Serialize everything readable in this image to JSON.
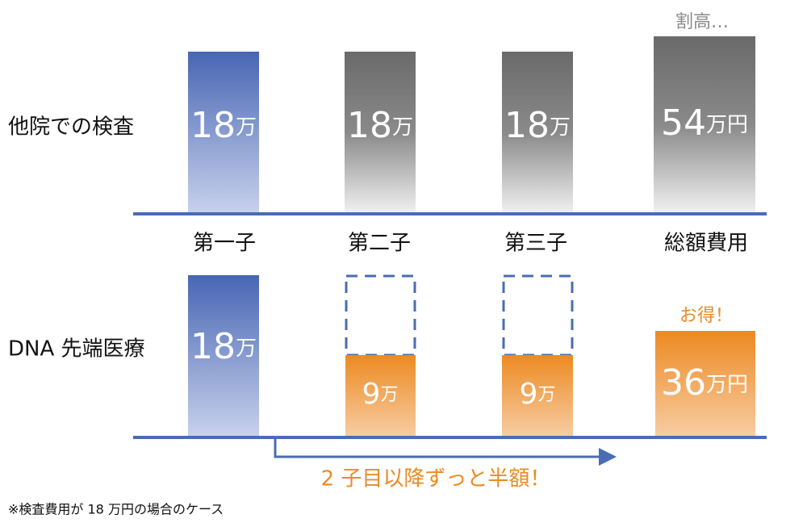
{
  "row_labels": [
    "他院での検査",
    "DNA 先端医療"
  ],
  "columns": [
    "第一子",
    "第二子",
    "第三子",
    "総額費用"
  ],
  "top_row": [
    {
      "amount": "18",
      "unit": "万"
    },
    {
      "amount": "18",
      "unit": "万"
    },
    {
      "amount": "18",
      "unit": "万"
    },
    {
      "amount": "54",
      "unit": "万円"
    }
  ],
  "bottom_row": [
    {
      "amount": "18",
      "unit": "万"
    },
    {
      "amount": "9",
      "unit": "万"
    },
    {
      "amount": "9",
      "unit": "万"
    },
    {
      "amount": "36",
      "unit": "万円"
    }
  ],
  "annotation_top": "割高…",
  "annotation_bottom": "お得！",
  "arrow_text": "2 子目以降ずっと半額！",
  "footnote": "※検査費用が 18 万円の場合のケース"
}
